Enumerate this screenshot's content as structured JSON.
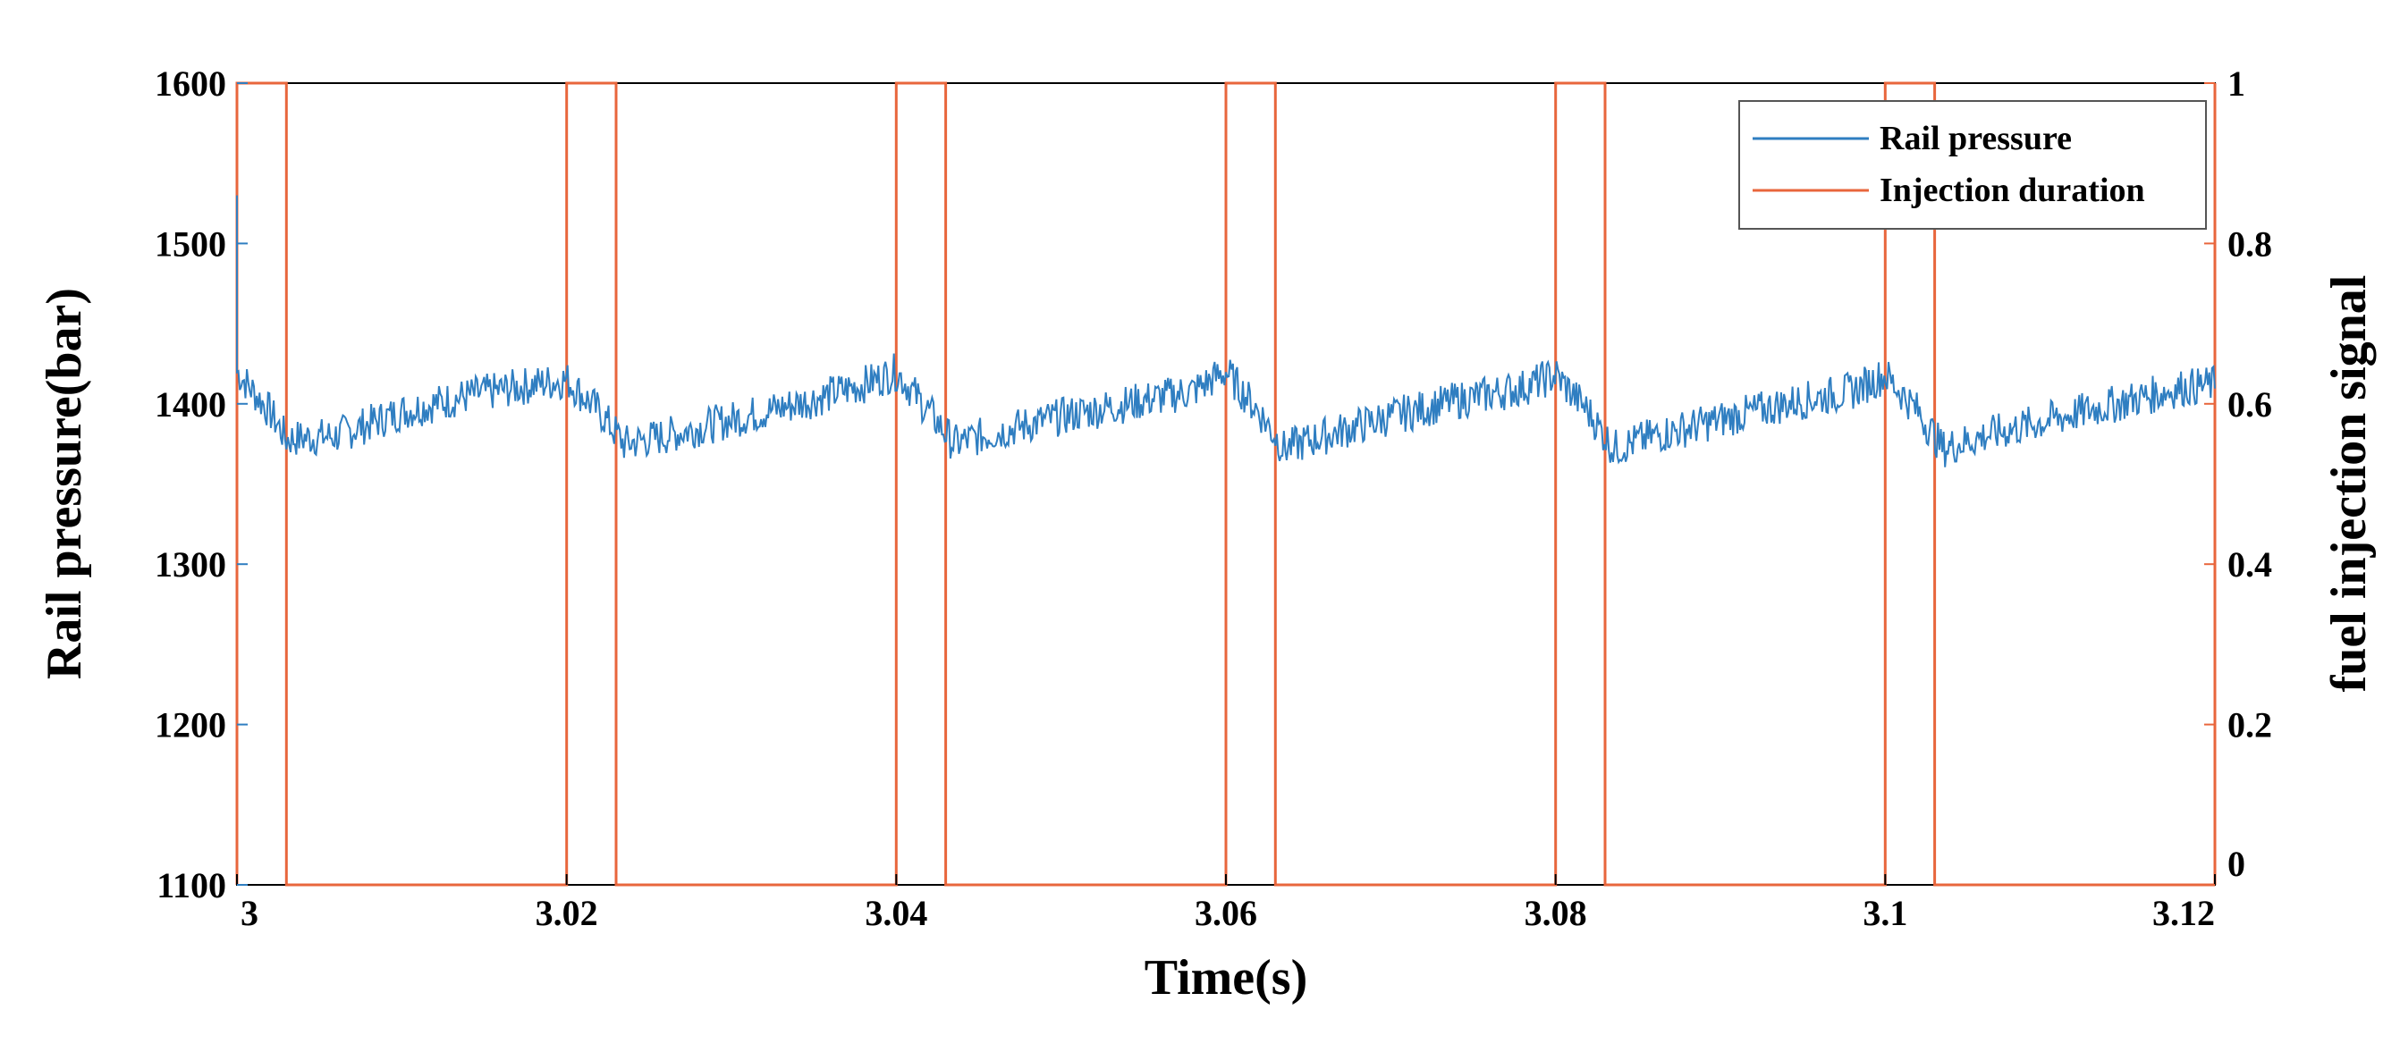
{
  "chart_data": {
    "type": "line",
    "xlabel": "Time(s)",
    "ylabel_left": "Rail pressure(bar)",
    "ylabel_right": "fuel injection signal",
    "xlim": [
      3,
      3.12
    ],
    "ylim_left": [
      1100,
      1600
    ],
    "ylim_right": [
      0,
      1
    ],
    "x_ticks": [
      "3",
      "3.02",
      "3.04",
      "3.06",
      "3.08",
      "3.1",
      "3.12"
    ],
    "x_tick_values": [
      3,
      3.02,
      3.04,
      3.06,
      3.08,
      3.1,
      3.12
    ],
    "y_left_ticks": [
      "1100",
      "1200",
      "1300",
      "1400",
      "1500",
      "1600"
    ],
    "y_left_tick_values": [
      1100,
      1200,
      1300,
      1400,
      1500,
      1600
    ],
    "y_right_ticks": [
      "0",
      "0.2",
      "0.4",
      "0.6",
      "0.8",
      "1"
    ],
    "y_right_tick_values": [
      0,
      0.2,
      0.4,
      0.6,
      0.8,
      1
    ],
    "grid": false,
    "legend_position": "top-right",
    "series": [
      {
        "name": "Rail pressure",
        "axis": "left",
        "color": "#2f7ec1",
        "x": [
          3.0,
          3.002,
          3.003,
          3.006,
          3.01,
          3.014,
          3.018,
          3.02,
          3.022,
          3.0235,
          3.026,
          3.03,
          3.034,
          3.038,
          3.04,
          3.042,
          3.0435,
          3.046,
          3.05,
          3.054,
          3.058,
          3.06,
          3.062,
          3.0635,
          3.066,
          3.07,
          3.074,
          3.078,
          3.08,
          3.082,
          3.0835,
          3.086,
          3.09,
          3.094,
          3.098,
          3.1,
          3.102,
          3.1035,
          3.106,
          3.11,
          3.114,
          3.118,
          3.12
        ],
        "y": [
          1420,
          1395,
          1378,
          1380,
          1395,
          1405,
          1412,
          1415,
          1395,
          1375,
          1380,
          1390,
          1400,
          1412,
          1420,
          1395,
          1375,
          1382,
          1392,
          1400,
          1408,
          1420,
          1395,
          1372,
          1380,
          1392,
          1402,
          1410,
          1418,
          1395,
          1372,
          1380,
          1390,
          1400,
          1408,
          1418,
          1395,
          1372,
          1380,
          1390,
          1400,
          1410,
          1412
        ],
        "noise_amplitude": 12
      },
      {
        "name": "Injection duration",
        "axis": "right",
        "color": "#e8663c",
        "x": [
          3.0,
          3.0,
          3.003,
          3.003,
          3.02,
          3.02,
          3.023,
          3.023,
          3.04,
          3.04,
          3.043,
          3.043,
          3.06,
          3.06,
          3.063,
          3.063,
          3.08,
          3.08,
          3.083,
          3.083,
          3.1,
          3.1,
          3.103,
          3.103,
          3.12
        ],
        "y": [
          0,
          1,
          1,
          0,
          0,
          1,
          1,
          0,
          0,
          1,
          1,
          0,
          0,
          1,
          1,
          0,
          0,
          1,
          1,
          0,
          0,
          1,
          1,
          0,
          0
        ]
      }
    ]
  }
}
